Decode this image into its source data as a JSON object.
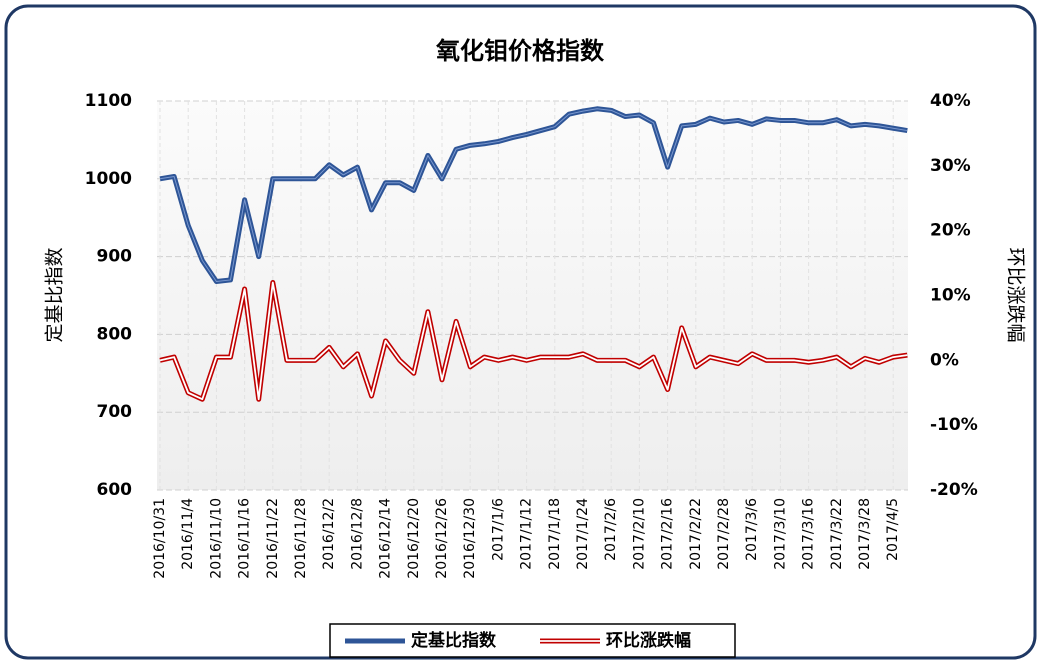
{
  "chart_data": {
    "type": "line",
    "title": "氧化钼价格指数",
    "y_label": "定基比指数",
    "y2_label": "环比涨跌幅",
    "categories": [
      "2016/10/31",
      null,
      "2016/11/4",
      null,
      "2016/11/10",
      null,
      "2016/11/16",
      null,
      "2016/11/22",
      null,
      "2016/11/28",
      null,
      "2016/12/2",
      null,
      "2016/12/8",
      null,
      "2016/12/14",
      null,
      "2016/12/20",
      null,
      "2016/12/26",
      null,
      "2016/12/30",
      null,
      "2017/1/6",
      null,
      "2017/1/12",
      null,
      "2017/1/18",
      null,
      "2017/1/24",
      null,
      "2017/2/6",
      null,
      "2017/2/10",
      null,
      "2017/2/16",
      null,
      "2017/2/22",
      null,
      "2017/2/28",
      null,
      "2017/3/6",
      null,
      "2017/3/10",
      null,
      "2017/3/16",
      null,
      "2017/3/22",
      null,
      "2017/3/28",
      null,
      "2017/4/5",
      null
    ],
    "series": [
      {
        "name": "定基比指数",
        "color": "#2e5597",
        "values": [
          1000,
          1003,
          940,
          895,
          868,
          870,
          973,
          900,
          1000,
          1000,
          1000,
          1000,
          1018,
          1005,
          1015,
          960,
          995,
          995,
          985,
          1030,
          1000,
          1038,
          1043,
          1045,
          1048,
          1053,
          1057,
          1062,
          1067,
          1083,
          1087,
          1090,
          1088,
          1080,
          1082,
          1072,
          1015,
          1068,
          1070,
          1078,
          1073,
          1075,
          1070,
          1077,
          1075,
          1075,
          1072,
          1072,
          1076,
          1068,
          1070,
          1068,
          1065,
          1062
        ]
      },
      {
        "name": "环比涨跌幅",
        "color": "#c00000",
        "axis": "y2",
        "values": [
          0,
          0.5,
          -5,
          -6,
          0.5,
          0.5,
          11,
          -6,
          12,
          0,
          0,
          0,
          2,
          -1,
          1,
          -5.5,
          3,
          0,
          -2,
          7.5,
          -3,
          6,
          -1,
          0.5,
          0,
          0.5,
          0,
          0.5,
          0.5,
          0.5,
          1,
          0,
          0,
          0,
          -1,
          0.5,
          -4.5,
          5,
          -1,
          0.5,
          0,
          -0.5,
          1,
          0,
          0,
          0,
          -0.3,
          0,
          0.5,
          -1,
          0.3,
          -0.3,
          0.5,
          0.8
        ]
      }
    ],
    "ylim": [
      600,
      1100
    ],
    "yticks": [
      600,
      700,
      800,
      900,
      1000,
      1100
    ],
    "y2lim": [
      -20,
      40
    ],
    "y2ticks": [
      {
        "value": -20,
        "label": "-20%"
      },
      {
        "value": -10,
        "label": "-10%"
      },
      {
        "value": 0,
        "label": "0%"
      },
      {
        "value": 10,
        "label": "10%"
      },
      {
        "value": 20,
        "label": "20%"
      },
      {
        "value": 30,
        "label": "30%"
      },
      {
        "value": 40,
        "label": "40%"
      }
    ],
    "grid": true,
    "legend": "bottom"
  }
}
